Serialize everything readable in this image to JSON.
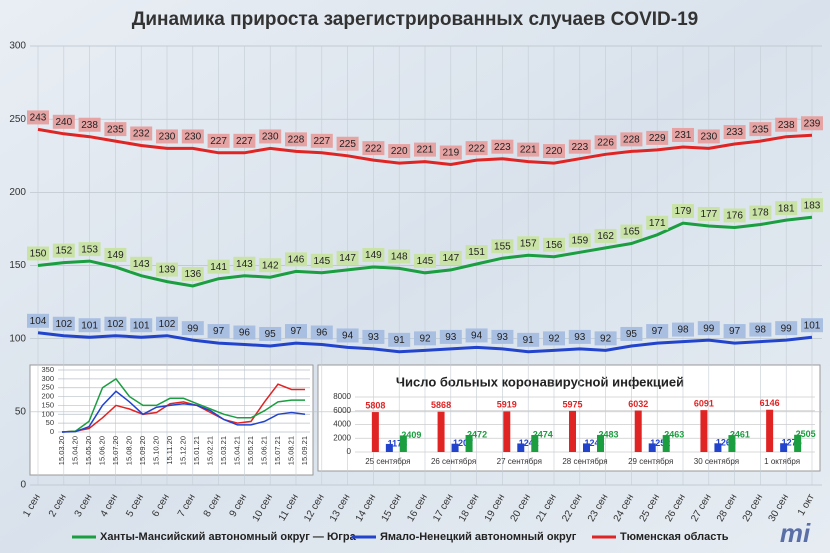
{
  "chart_data": [
    {
      "type": "line",
      "title": "Динамика прироста зарегистрированных случаев COVID-19",
      "categories": [
        "1 сен",
        "2 сен",
        "3 сен",
        "4 сен",
        "5 сен",
        "6 сен",
        "7 сен",
        "8 сен",
        "9 сен",
        "10 сен",
        "11 сен",
        "12 сен",
        "13 сен",
        "14 сен",
        "15 сен",
        "16 сен",
        "17 сен",
        "18 сен",
        "19 сен",
        "20 сен",
        "21 сен",
        "22 сен",
        "23 сен",
        "24 сен",
        "25 сен",
        "26 сен",
        "27 сен",
        "28 сен",
        "29 сен",
        "30 сен",
        "1 окт"
      ],
      "series": [
        {
          "name": "Ханты-Мансийский автономный округ — Югра",
          "color": "#1a9e3f",
          "label_color": "#c9e3a6",
          "values": [
            150,
            152,
            153,
            149,
            143,
            139,
            136,
            141,
            143,
            142,
            146,
            145,
            147,
            149,
            148,
            145,
            147,
            151,
            155,
            157,
            156,
            159,
            162,
            165,
            171,
            179,
            177,
            176,
            178,
            181,
            183
          ]
        },
        {
          "name": "Ямало-Ненецкий автономный округ",
          "color": "#2244cc",
          "label_color": "#a9bfe2",
          "values": [
            104,
            102,
            101,
            102,
            101,
            102,
            99,
            97,
            96,
            95,
            97,
            96,
            94,
            93,
            91,
            92,
            93,
            94,
            93,
            91,
            92,
            93,
            92,
            95,
            97,
            98,
            99,
            97,
            98,
            99,
            101
          ]
        },
        {
          "name": "Тюменская область",
          "color": "#e02424",
          "label_color": "#e6a3a3",
          "values": [
            243,
            240,
            238,
            235,
            232,
            230,
            230,
            227,
            227,
            230,
            228,
            227,
            225,
            222,
            220,
            221,
            219,
            222,
            223,
            221,
            220,
            223,
            226,
            228,
            229,
            231,
            230,
            233,
            235,
            238,
            239
          ]
        }
      ],
      "ylim": [
        0,
        300
      ],
      "yticks": [
        0,
        50,
        100,
        150,
        200,
        250,
        300
      ],
      "grid": true
    },
    {
      "type": "line",
      "categories": [
        "15.03.20",
        "15.04.20",
        "15.05.20",
        "15.06.20",
        "15.07.20",
        "15.08.20",
        "15.09.20",
        "15.10.20",
        "15.11.20",
        "15.12.20",
        "15.01.21",
        "15.02.21",
        "15.03.21",
        "15.04.21",
        "15.05.21",
        "15.06.21",
        "15.07.21",
        "15.08.21",
        "15.09.21"
      ],
      "series": [
        {
          "color": "#e02424",
          "values": [
            0,
            5,
            20,
            80,
            150,
            130,
            100,
            110,
            160,
            170,
            150,
            110,
            70,
            50,
            60,
            170,
            270,
            240,
            240
          ]
        },
        {
          "color": "#1a9e3f",
          "values": [
            0,
            5,
            60,
            250,
            300,
            200,
            150,
            150,
            190,
            190,
            160,
            130,
            100,
            80,
            80,
            120,
            170,
            180,
            180
          ]
        },
        {
          "color": "#2244cc",
          "values": [
            0,
            2,
            30,
            150,
            230,
            170,
            100,
            140,
            150,
            160,
            150,
            120,
            70,
            40,
            40,
            60,
            100,
            110,
            100
          ]
        }
      ],
      "ylim": [
        0,
        350
      ],
      "yticks": [
        0,
        50,
        100,
        150,
        200,
        250,
        300,
        350
      ],
      "grid": true
    },
    {
      "type": "bar",
      "title": "Число больных коронавирусной инфекцией",
      "categories": [
        "25 сентября",
        "26 сентября",
        "27 сентября",
        "28 сентября",
        "29 сентября",
        "30 сентября",
        "1 октября"
      ],
      "series": [
        {
          "color": "#e02424",
          "values": [
            5808,
            5868,
            5919,
            5975,
            6032,
            6091,
            6146
          ]
        },
        {
          "color": "#2244cc",
          "values": [
            1173,
            1207,
            1242,
            1248,
            1252,
            1266,
            1275
          ]
        },
        {
          "color": "#1a9e3f",
          "values": [
            2409,
            2472,
            2474,
            2483,
            2463,
            2461,
            2505
          ]
        }
      ],
      "ylim": [
        0,
        8000
      ],
      "yticks": [
        0,
        2000,
        4000,
        6000,
        8000
      ],
      "grid": true
    }
  ],
  "logo": "mi"
}
